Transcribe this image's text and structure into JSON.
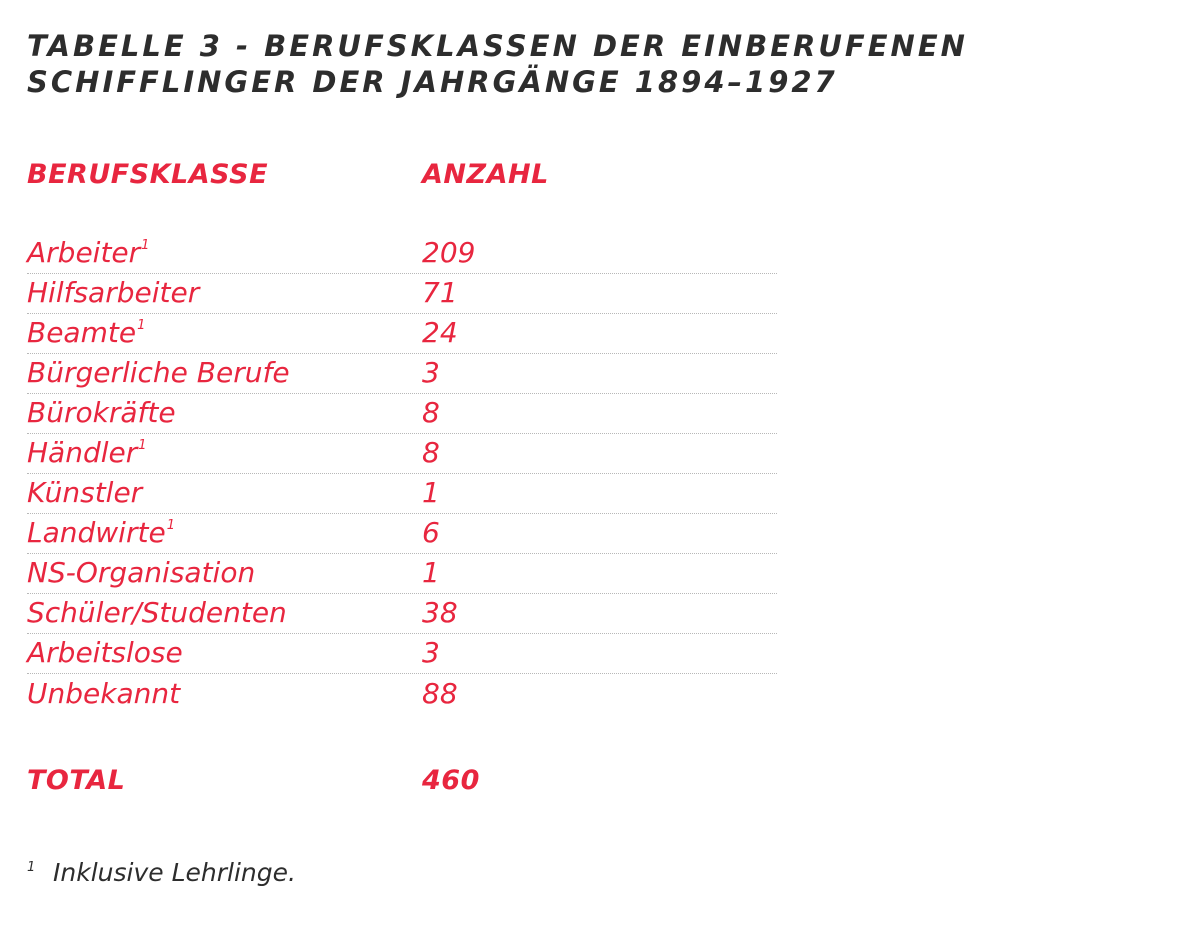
{
  "title": {
    "line1": "TABELLE 3 - BERUFSKLASSEN DER EINBERUFENEN",
    "line2": "SCHIFFLINGER DER JAHRGÄNGE 1894–1927"
  },
  "table": {
    "headers": {
      "class": "BERUFSKLASSE",
      "count": "ANZAHL"
    },
    "rows": [
      {
        "label": "Arbeiter",
        "footnote": "1",
        "value": "209"
      },
      {
        "label": "Hilfsarbeiter",
        "footnote": "",
        "value": "71"
      },
      {
        "label": "Beamte",
        "footnote": "1",
        "value": "24"
      },
      {
        "label": "Bürgerliche Berufe",
        "footnote": "",
        "value": "3"
      },
      {
        "label": "Bürokräfte",
        "footnote": "",
        "value": "8"
      },
      {
        "label": "Händler",
        "footnote": "1",
        "value": "8"
      },
      {
        "label": "Künstler",
        "footnote": "",
        "value": "1"
      },
      {
        "label": "Landwirte",
        "footnote": "1",
        "value": "6"
      },
      {
        "label": "NS-Organisation",
        "footnote": "",
        "value": "1"
      },
      {
        "label": "Schüler/Studenten",
        "footnote": "",
        "value": "38"
      },
      {
        "label": "Arbeitslose",
        "footnote": "",
        "value": "3"
      },
      {
        "label": "Unbekannt",
        "footnote": "",
        "value": "88"
      }
    ],
    "total": {
      "label": "TOTAL",
      "value": "460"
    }
  },
  "footnote": {
    "mark": "1",
    "text": "Inklusive Lehrlinge."
  },
  "colors": {
    "accent": "#e8263f",
    "text": "#2d2d2d",
    "divider": "#b8b8b8"
  }
}
